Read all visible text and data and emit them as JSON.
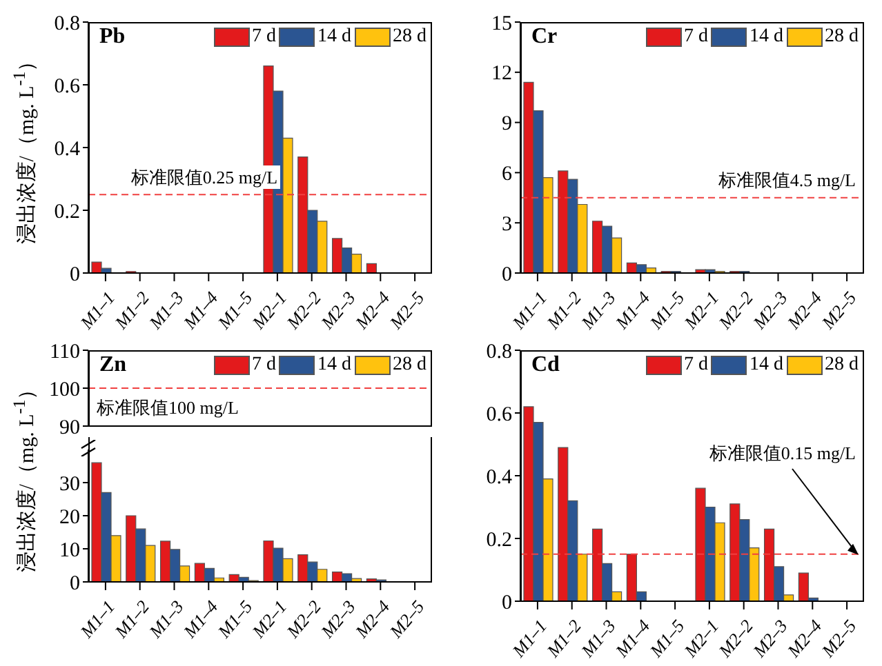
{
  "chart_data": [
    {
      "type": "bar",
      "title": "Pb",
      "ylabel": "浸出浓度/（mg. L$^{-1}$）",
      "categories": [
        "M1–1",
        "M1–2",
        "M1–3",
        "M1–4",
        "M1–5",
        "M2–1",
        "M2–2",
        "M2–3",
        "M2–4",
        "M2–5"
      ],
      "series": [
        {
          "name": "7 d",
          "color": "#e31a1c",
          "values": [
            0.035,
            0.005,
            0,
            0,
            0,
            0.66,
            0.37,
            0.11,
            0.03,
            0
          ]
        },
        {
          "name": "14 d",
          "color": "#2b5592",
          "values": [
            0.015,
            0,
            0,
            0,
            0,
            0.58,
            0.2,
            0.08,
            0,
            0
          ]
        },
        {
          "name": "28 d",
          "color": "#ffc20e",
          "values": [
            0,
            0,
            0,
            0,
            0,
            0.43,
            0.165,
            0.06,
            0,
            0
          ]
        }
      ],
      "ylim": [
        0,
        0.8
      ],
      "yticks": [
        {
          "value": 0,
          "label": "0"
        },
        0.2,
        0.4,
        0.6,
        0.8
      ],
      "legend": "top right",
      "ref_lines": [
        {
          "axis": "y",
          "value": 0.25,
          "label": "标准限值0.25 mg/L",
          "color": "#f04040",
          "line_style": "dashed"
        }
      ]
    },
    {
      "type": "bar",
      "title": "Cr",
      "categories": [
        "M1–1",
        "M1–2",
        "M1–3",
        "M1–4",
        "M1–5",
        "M2–1",
        "M2–2",
        "M2–3",
        "M2–4",
        "M2–5"
      ],
      "series": [
        {
          "name": "7 d",
          "color": "#e31a1c",
          "values": [
            11.4,
            6.1,
            3.1,
            0.6,
            0.1,
            0.2,
            0.1,
            0,
            0,
            0
          ]
        },
        {
          "name": "14 d",
          "color": "#2b5592",
          "values": [
            9.7,
            5.6,
            2.8,
            0.5,
            0.1,
            0.2,
            0.1,
            0,
            0,
            0
          ]
        },
        {
          "name": "28 d",
          "color": "#ffc20e",
          "values": [
            5.7,
            4.1,
            2.1,
            0.3,
            0,
            0.1,
            0,
            0,
            0,
            0
          ]
        }
      ],
      "ylim": [
        0,
        15
      ],
      "yticks": [
        0,
        3,
        6,
        9,
        12,
        15
      ],
      "legend": "top right",
      "ref_lines": [
        {
          "axis": "y",
          "value": 4.5,
          "label": "标准限值4.5 mg/L",
          "color": "#f04040",
          "line_style": "dashed"
        }
      ]
    },
    {
      "type": "bar",
      "title": "Zn",
      "series": [
        {
          "name": "7 d",
          "color": "#e31a1c",
          "values": [
            null,
            null,
            null,
            null,
            null,
            null,
            null,
            null,
            null,
            null
          ]
        },
        {
          "name": "14 d",
          "color": "#2b5592",
          "values": [
            null,
            null,
            null,
            null,
            null,
            null,
            null,
            null,
            null,
            null
          ]
        },
        {
          "name": "28 d",
          "color": "#ffc20e",
          "values": [
            null,
            null,
            null,
            null,
            null,
            null,
            null,
            null,
            null,
            null
          ]
        }
      ],
      "ylim": [
        90,
        110
      ],
      "yticks": [
        90,
        100,
        110
      ],
      "legend": "top right",
      "tick_labels": "y",
      "ref_lines": [
        {
          "axis": "y",
          "value": 100,
          "label": "标准限值100 mg/L",
          "color": "#f04040",
          "line_style": "dashed"
        }
      ]
    },
    {
      "type": "bar",
      "ylabel": "浸出浓度/（mg. L$^{-1}$）",
      "categories": [
        "M1–1",
        "M1–2",
        "M1–3",
        "M1–4",
        "M1–5",
        "M2–1",
        "M2–2",
        "M2–3",
        "M2–4",
        "M2–5"
      ],
      "series": [
        {
          "color": "#e31a1c",
          "values": [
            36,
            20,
            12.3,
            5.6,
            2.2,
            12.4,
            8.2,
            3,
            0.9,
            0
          ]
        },
        {
          "color": "#2b5592",
          "values": [
            27,
            16,
            9.8,
            4.1,
            1.4,
            10.2,
            6,
            2.5,
            0.6,
            0
          ]
        },
        {
          "color": "#ffc20e",
          "values": [
            14,
            11,
            4.8,
            1.2,
            0.4,
            7,
            3.8,
            1,
            0,
            0
          ]
        }
      ],
      "ylim": [
        0,
        40
      ],
      "yticks": [
        0,
        10,
        20,
        30
      ]
    },
    {
      "type": "bar",
      "title": "Cd",
      "categories": [
        "M1–1",
        "M1–2",
        "M1–3",
        "M1–4",
        "M1–5",
        "M2–1",
        "M2–2",
        "M2–3",
        "M2–4",
        "M2–5"
      ],
      "series": [
        {
          "name": "7 d",
          "color": "#e31a1c",
          "values": [
            0.62,
            0.49,
            0.23,
            0.15,
            0,
            0.36,
            0.31,
            0.23,
            0.09,
            0
          ]
        },
        {
          "name": "14 d",
          "color": "#2b5592",
          "values": [
            0.57,
            0.32,
            0.12,
            0.03,
            0,
            0.3,
            0.26,
            0.11,
            0.01,
            0
          ]
        },
        {
          "name": "28 d",
          "color": "#ffc20e",
          "values": [
            0.39,
            0.15,
            0.03,
            0,
            0,
            0.25,
            0.17,
            0.02,
            0,
            0
          ]
        }
      ],
      "ylim": [
        0,
        0.8
      ],
      "yticks": [
        {
          "value": 0,
          "label": "0"
        },
        0.2,
        0.4,
        0.6,
        0.8
      ],
      "legend": "top right",
      "ref_lines": [
        {
          "axis": "y",
          "value": 0.15,
          "label": "标准限值0.15 mg/L",
          "color": "#f04040",
          "line_style": "dashed"
        }
      ]
    }
  ]
}
